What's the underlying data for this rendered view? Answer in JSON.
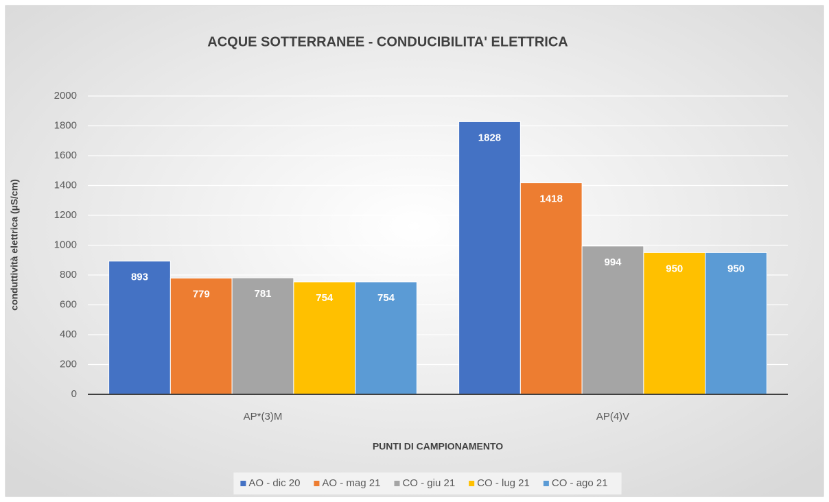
{
  "chart_data": {
    "type": "bar",
    "title": "ACQUE SOTTERRANEE - CONDUCIBILITA' ELETTRICA",
    "x_label": "PUNTI DI CAMPIONAMENTO",
    "y_label": "conduttività elettrica (µS/cm)",
    "categories": [
      "AP*(3)M",
      "AP(4)V"
    ],
    "series": [
      {
        "name": "AO - dic 20",
        "color": "#4472c4",
        "values": [
          893,
          1828
        ]
      },
      {
        "name": "AO - mag 21",
        "color": "#ed7d31",
        "values": [
          779,
          1418
        ]
      },
      {
        "name": "CO - giu 21",
        "color": "#a5a5a5",
        "values": [
          781,
          994
        ]
      },
      {
        "name": "CO - lug 21",
        "color": "#ffc000",
        "values": [
          754,
          950
        ]
      },
      {
        "name": "CO - ago 21",
        "color": "#5b9bd5",
        "values": [
          754,
          950
        ]
      }
    ],
    "ylim": [
      0,
      2000
    ],
    "yticks": [
      0,
      200,
      400,
      600,
      800,
      1000,
      1200,
      1400,
      1600,
      1800,
      2000
    ],
    "grid": true,
    "legend": "bottom"
  }
}
